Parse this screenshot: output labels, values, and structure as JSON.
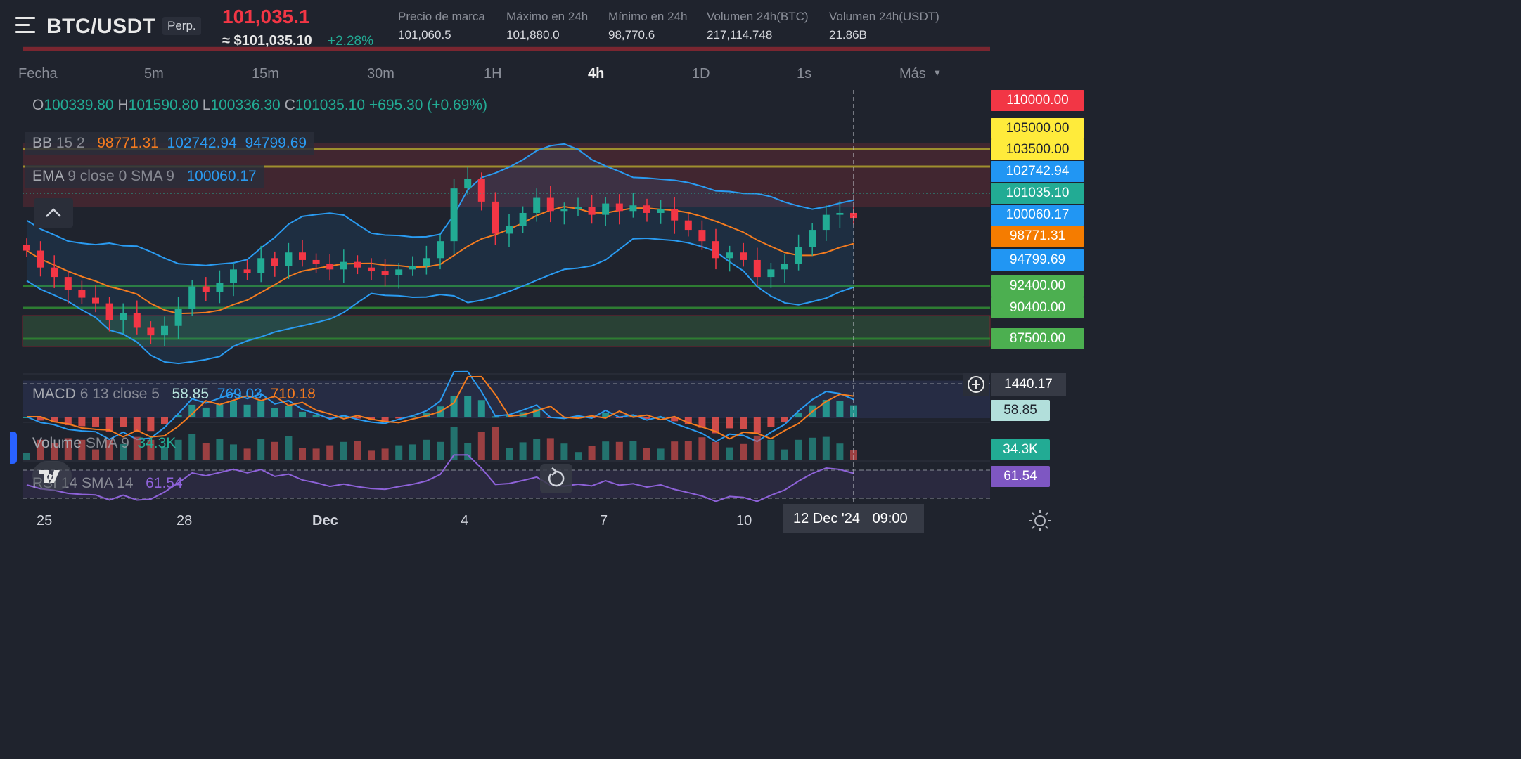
{
  "header": {
    "symbol": "BTC/USDT",
    "contract": "Perp.",
    "last_price": "101,035.1",
    "approx_usd": "≈ $101,035.10",
    "change_pct": "+2.28%",
    "stats": [
      {
        "label": "Precio de marca",
        "value": "101,060.5"
      },
      {
        "label": "Máximo en 24h",
        "value": "101,880.0"
      },
      {
        "label": "Mínimo en 24h",
        "value": "98,770.6"
      },
      {
        "label": "Volumen 24h(BTC)",
        "value": "217,114.748"
      },
      {
        "label": "Volumen 24h(USDT)",
        "value": "21.86B"
      }
    ]
  },
  "timeframes": [
    "Fecha",
    "5m",
    "15m",
    "30m",
    "1H",
    "4h",
    "1D",
    "1s",
    "Más"
  ],
  "active_timeframe": "4h",
  "ohlc": {
    "o_label": "O",
    "o": "100339.80",
    "h_label": "H",
    "h": "101590.80",
    "l_label": "L",
    "l": "100336.30",
    "c_label": "C",
    "c": "101035.10",
    "change": "+695.30 (+0.69%)"
  },
  "indicators": {
    "bb": {
      "name": "BB",
      "params": "15 2",
      "mid": "98771.31",
      "upper": "102742.94",
      "lower": "94799.69"
    },
    "ema": {
      "name": "EMA",
      "params": "9 close 0 SMA 9",
      "value": "100060.17"
    },
    "macd": {
      "name": "MACD",
      "params": "6 13 close 5",
      "hist": "58.85",
      "macd": "769.03",
      "signal": "710.18"
    },
    "volume": {
      "name": "Volume",
      "params": "SMA 9",
      "value": "34.3K"
    },
    "rsi": {
      "name": "RSI",
      "params": "14 SMA 14",
      "value": "61.54"
    }
  },
  "price_tags": [
    {
      "label": "110000.00",
      "bg": "#f23645",
      "fg": "#ffffff"
    },
    {
      "label": "105000.00",
      "bg": "#ffeb3b",
      "fg": "#1f232d"
    },
    {
      "label": "103500.00",
      "bg": "#ffeb3b",
      "fg": "#1f232d"
    },
    {
      "label": "102742.94",
      "bg": "#2196f3",
      "fg": "#ffffff"
    },
    {
      "label": "101035.10",
      "bg": "#22ab94",
      "fg": "#ffffff"
    },
    {
      "label": "100060.17",
      "bg": "#2196f3",
      "fg": "#ffffff"
    },
    {
      "label": "98771.31",
      "bg": "#f57c00",
      "fg": "#ffffff"
    },
    {
      "label": "94799.69",
      "bg": "#2196f3",
      "fg": "#ffffff"
    },
    {
      "label": "92400.00",
      "bg": "#4caf50",
      "fg": "#ffffff"
    },
    {
      "label": "90400.00",
      "bg": "#4caf50",
      "fg": "#ffffff"
    },
    {
      "label": "87500.00",
      "bg": "#4caf50",
      "fg": "#ffffff"
    }
  ],
  "pane_tags": {
    "crosshair_value": "1440.17",
    "macd_hist": "58.85",
    "volume": "34.3K",
    "rsi": "61.54"
  },
  "crosshair_date": "12 Dec '24",
  "crosshair_time": "09:00",
  "chart_data": {
    "type": "candlestick",
    "x_ticks": [
      "25",
      "28",
      "Dec",
      "4",
      "7",
      "10"
    ],
    "close_series_approx": [
      99300,
      98400,
      97900,
      97200,
      96800,
      96500,
      95600,
      96000,
      95200,
      94800,
      95300,
      96200,
      97400,
      97100,
      97600,
      98300,
      98100,
      98900,
      98500,
      99200,
      98800,
      98600,
      98300,
      98700,
      98400,
      98200,
      98000,
      98300,
      98500,
      98900,
      99800,
      102600,
      103100,
      101900,
      100200,
      100600,
      101300,
      102100,
      101400,
      101500,
      101600,
      101200,
      101800,
      101400,
      101700,
      101300,
      101500,
      100900,
      100400,
      99800,
      98900,
      99200,
      98800,
      97900,
      98300,
      98600,
      99500,
      100400,
      101200,
      101300,
      101035
    ],
    "levels": [
      110000,
      105000,
      103500,
      92400,
      90400,
      87500
    ],
    "bollinger": {
      "mid": 98771.31,
      "upper": 102742.94,
      "lower": 94799.69
    },
    "ema": 100060.17,
    "macd": {
      "hist": 58.85,
      "macd": 769.03,
      "signal": 710.18
    },
    "volume_last": "34.3K",
    "rsi_last": 61.54
  },
  "colors": {
    "up": "#22ab94",
    "down": "#f23645",
    "bb": "#2a9bf1",
    "ema": "#f57c1f",
    "rsi": "#8e62d9"
  }
}
